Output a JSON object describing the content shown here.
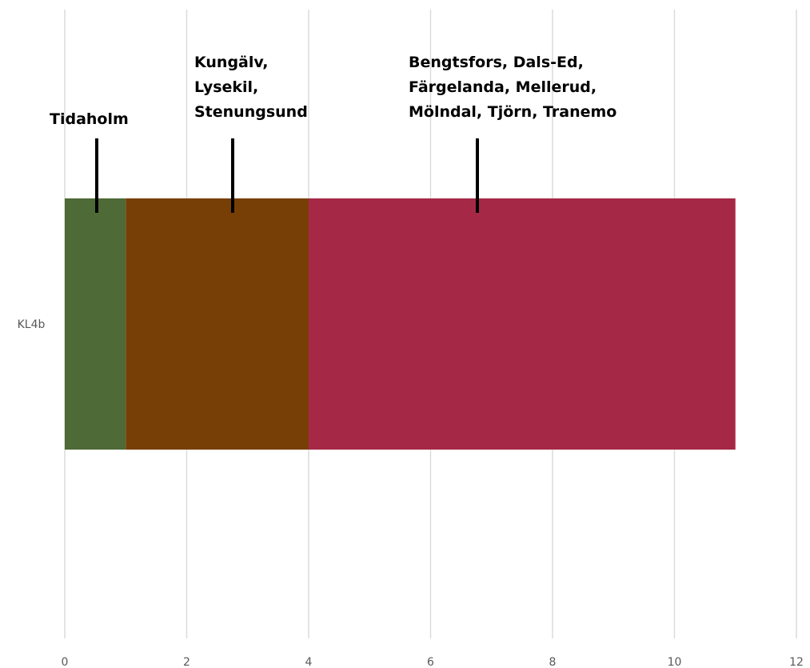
{
  "chart_data": {
    "type": "bar",
    "orientation": "horizontal",
    "stacked": true,
    "categories": [
      "KL4b"
    ],
    "series": [
      {
        "values": [
          1
        ],
        "color": "#4e6a36"
      },
      {
        "values": [
          3
        ],
        "color": "#773f05"
      },
      {
        "values": [
          7
        ],
        "color": "#a52946"
      }
    ],
    "xlim": [
      0,
      12
    ],
    "x_ticks": [
      "0",
      "2",
      "4",
      "6",
      "8",
      "10",
      "12"
    ],
    "grid": true,
    "legend": "none",
    "title": "",
    "xlabel": "",
    "ylabel": "",
    "annotations": [
      {
        "lines": [
          "Tidaholm"
        ],
        "series_index": 0
      },
      {
        "lines": [
          "Kungälv,",
          "Lysekil,",
          "Stenungsund"
        ],
        "series_index": 1
      },
      {
        "lines": [
          "Bengtsfors, Dals-Ed,",
          "Färgelanda, Mellerud,",
          "Mölndal, Tjörn, Tranemo"
        ],
        "series_index": 2
      }
    ]
  }
}
